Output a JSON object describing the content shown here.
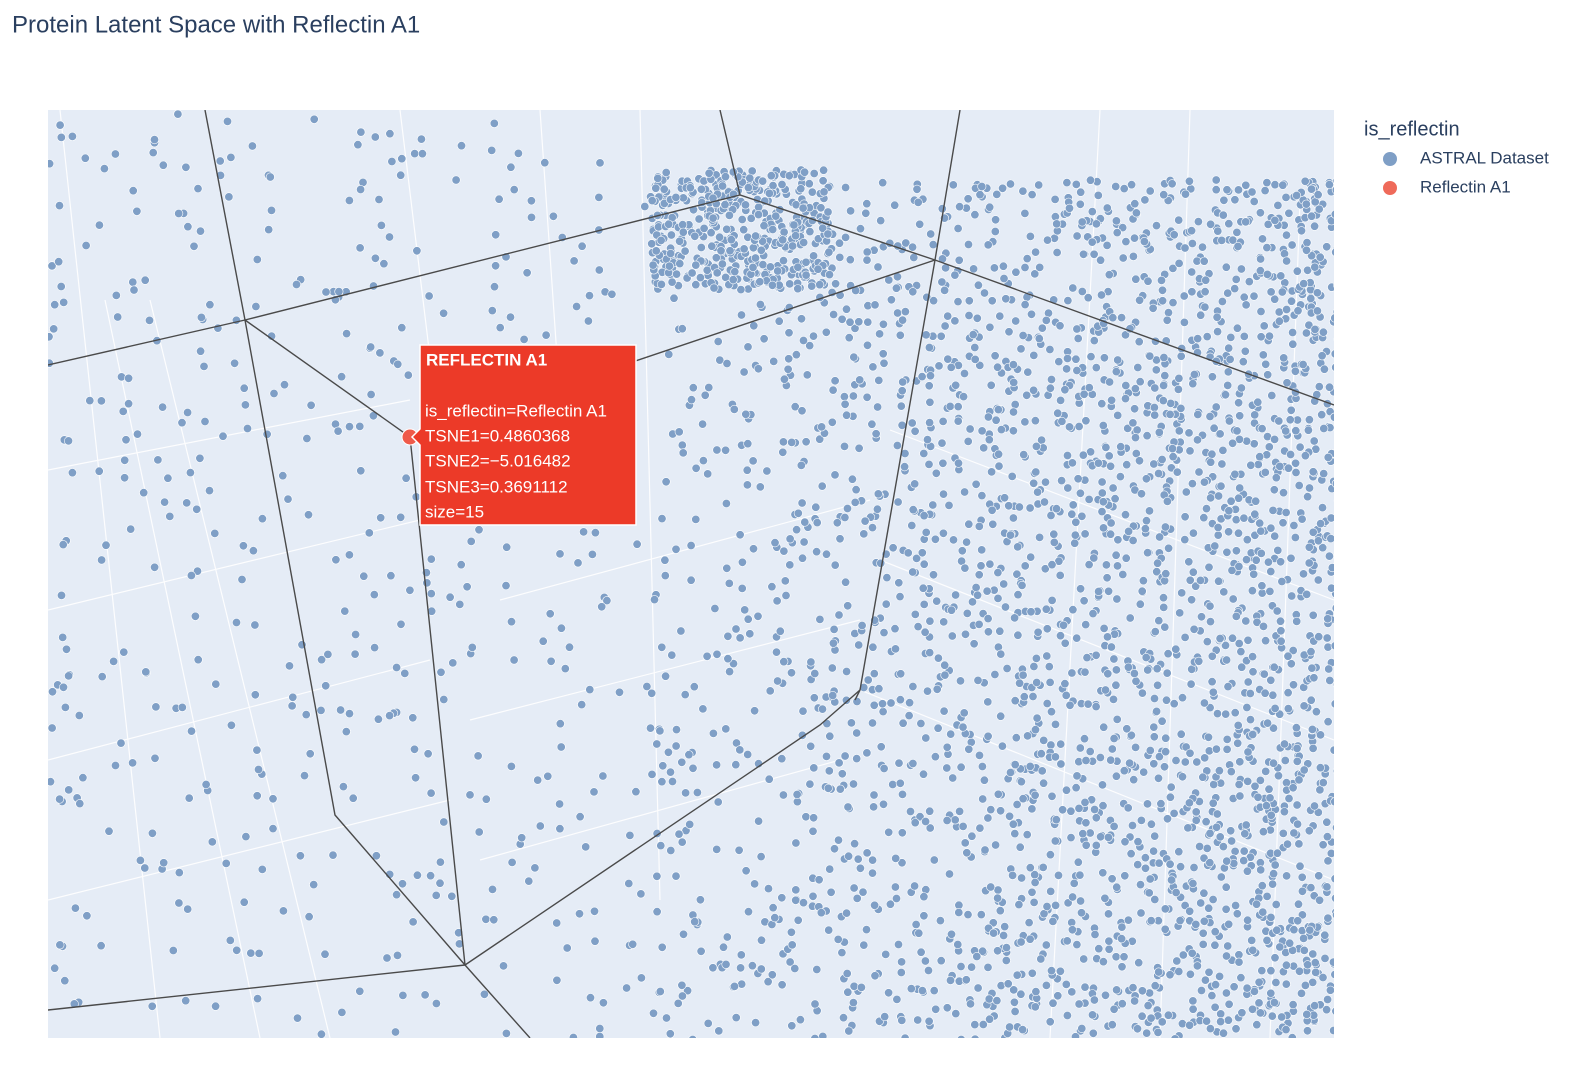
{
  "chart_data": {
    "type": "scatter3d",
    "title": "Protein Latent Space with Reflectin A1",
    "legend_title": "is_reflectin",
    "series": [
      {
        "name": "ASTRAL Dataset",
        "color": "#7f9fc6"
      },
      {
        "name": "Reflectin A1",
        "color": "#ef6a5a"
      }
    ],
    "hover": {
      "title": "REFLECTIN A1",
      "color": "#ec3a28",
      "lines": [
        "is_reflectin=Reflectin A1",
        "TSNE1=0.4860368",
        "TSNE2=−5.016482",
        "TSNE3=0.3691112",
        "size=15"
      ]
    }
  }
}
